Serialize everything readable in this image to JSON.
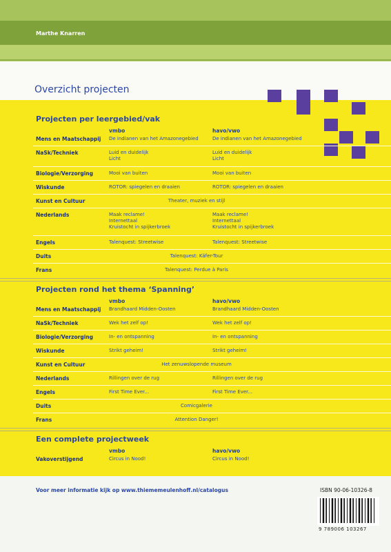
{
  "header": {
    "author": "Marthe Knarren"
  },
  "title": "Overzicht projecten",
  "sections": [
    {
      "title": "Projecten per leergebied/vak",
      "columns": [
        "vmbo",
        "havo/vwo"
      ],
      "rows": [
        {
          "subject": "Mens en Maatschappij",
          "vmbo": [
            "De indianen van het Amazonegebied"
          ],
          "havo": [
            "De indianen van het Amazonegebied"
          ]
        },
        {
          "subject": "NaSk/Techniek",
          "vmbo": [
            "Luid en duidelijk",
            "Licht"
          ],
          "havo": [
            "Luid en duidelijk",
            "Licht"
          ]
        },
        {
          "subject": "Biologie/Verzorging",
          "vmbo": [
            "Mooi van buiten"
          ],
          "havo": [
            "Mooi van buiten"
          ]
        },
        {
          "subject": "Wiskunde",
          "vmbo": [
            "ROTOR: spiegelen en draaien"
          ],
          "havo": [
            "ROTOR: spiegelen en draaien"
          ]
        },
        {
          "subject": "Kunst en Cultuur",
          "all": [
            "Theater, muziek en stijl"
          ]
        },
        {
          "subject": "Nederlands",
          "vmbo": [
            "Maak reclame!",
            "Internettaal",
            "Kruistocht in spijkerbroek"
          ],
          "havo": [
            "Maak reclame!",
            "Internettaal",
            "Kruistocht in spijkerbroek"
          ]
        },
        {
          "subject": "Engels",
          "vmbo": [
            "Talenquest: Streetwise"
          ],
          "havo": [
            "Talenquest: Streetwise"
          ]
        },
        {
          "subject": "Duits",
          "all": [
            "Talenquest: Käfer-Tour"
          ]
        },
        {
          "subject": "Frans",
          "all": [
            "Talenquest: Perdue à Paris"
          ]
        }
      ]
    },
    {
      "title": "Projecten rond het thema ‘Spanning’",
      "columns": [
        "vmbo",
        "havo/vwo"
      ],
      "rows": [
        {
          "subject": "Mens en Maatschappij",
          "vmbo": [
            "Brandhaard Midden-Oosten"
          ],
          "havo": [
            "Brandhaard Midden-Oosten"
          ]
        },
        {
          "subject": "NaSk/Techniek",
          "vmbo": [
            "Wek het zelf op!"
          ],
          "havo": [
            "Wek het zelf op!"
          ]
        },
        {
          "subject": "Biologie/Verzorging",
          "vmbo": [
            "In- en ontspanning"
          ],
          "havo": [
            "In- en ontspanning"
          ]
        },
        {
          "subject": "Wiskunde",
          "vmbo": [
            "Strikt geheim!"
          ],
          "havo": [
            "Strikt geheim!"
          ]
        },
        {
          "subject": "Kunst en Cultuur",
          "all": [
            "Het zenuwslopende museum"
          ]
        },
        {
          "subject": "Nederlands",
          "vmbo": [
            "Rillingen over de rug"
          ],
          "havo": [
            "Rillingen over de rug"
          ]
        },
        {
          "subject": "Engels",
          "vmbo": [
            "First Time Ever..."
          ],
          "havo": [
            "First Time Ever..."
          ]
        },
        {
          "subject": "Duits",
          "all": [
            "Comicgalerie"
          ]
        },
        {
          "subject": "Frans",
          "all": [
            "Attention Danger!"
          ]
        }
      ]
    },
    {
      "title": "Een complete projectweek",
      "columns": [
        "vmbo",
        "havo/vwo"
      ],
      "rows": [
        {
          "subject": "Vakoverstijgend",
          "vmbo": [
            "Circus in Nood!"
          ],
          "havo": [
            "Circus in Nood!"
          ]
        }
      ]
    }
  ],
  "footer": {
    "info": "Voor meer informatie kijk op www.thiememeulenhoff.nl/catalogus",
    "isbn": "ISBN 90-06-10326-8",
    "barcode_number": "9 789006 103267"
  }
}
